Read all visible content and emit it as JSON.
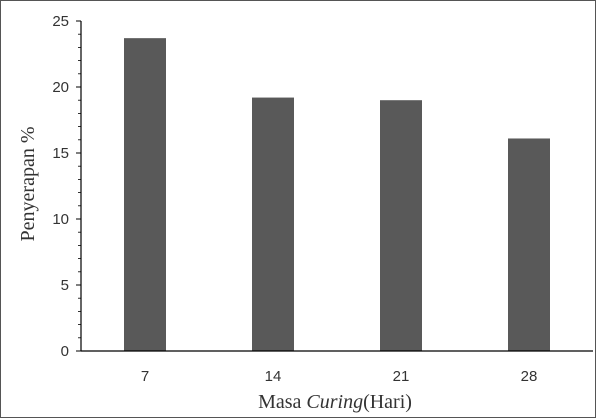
{
  "chart_data": {
    "type": "bar",
    "categories": [
      "7",
      "14",
      "21",
      "28"
    ],
    "values": [
      23.7,
      19.2,
      19.0,
      16.1
    ],
    "title": "",
    "xlabel_prefix": "Masa ",
    "xlabel_italic": "Curing",
    "xlabel_suffix": "(Hari)",
    "ylabel": "Penyerapan %",
    "ylim": [
      0,
      25
    ],
    "yticks": [
      "0",
      "5",
      "10",
      "15",
      "20",
      "25"
    ],
    "grid": false,
    "legend": "none",
    "bar_color": "#595959"
  }
}
